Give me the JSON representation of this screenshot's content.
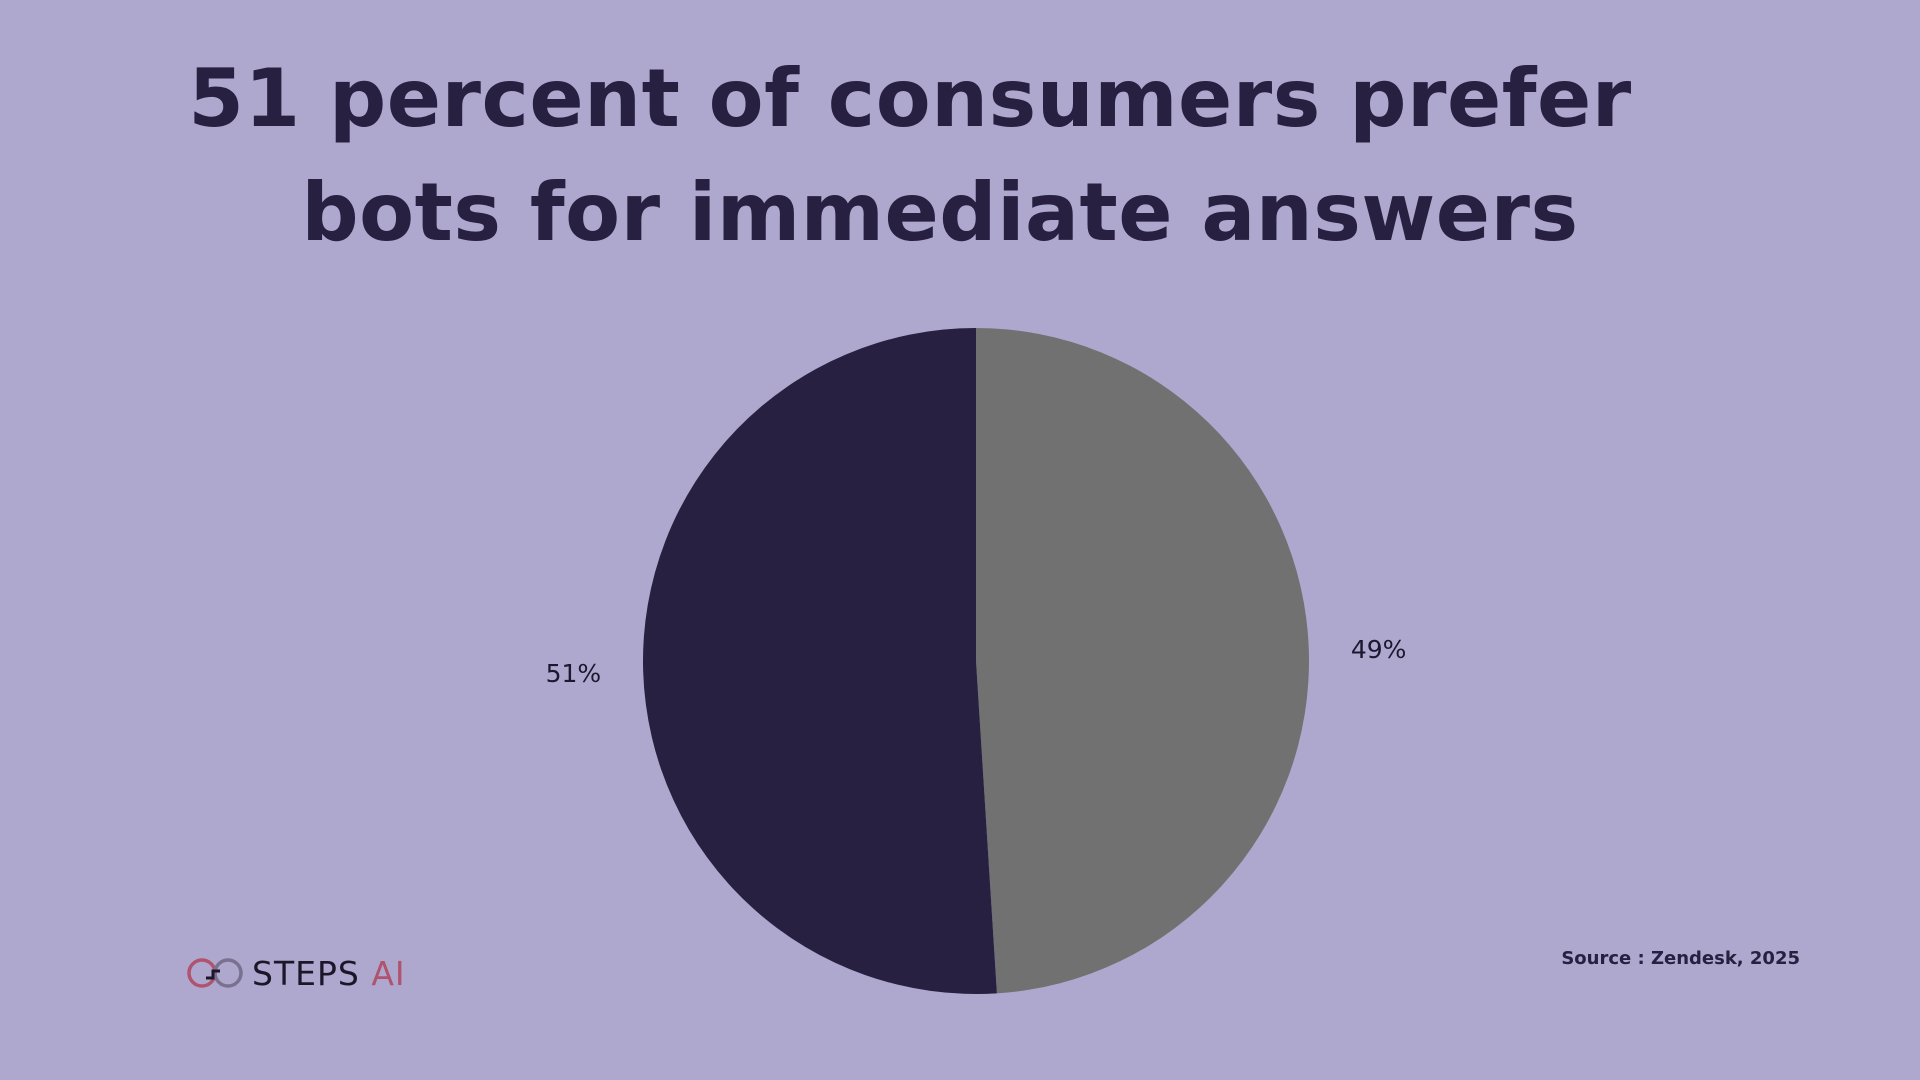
{
  "title": {
    "line1": "51 percent of consumers prefer",
    "line2": "bots for immediate answers"
  },
  "chart_data": {
    "type": "pie",
    "title": "51 percent of consumers prefer bots for immediate answers",
    "slices": [
      {
        "value": 49,
        "label": "49%",
        "color": "#717171"
      },
      {
        "value": 51,
        "label": "51%",
        "color": "#272040"
      }
    ],
    "start": "12 o'clock",
    "direction": "clockwise",
    "legend": "none"
  },
  "source": "Source : Zendesk, 2025",
  "logo": {
    "text": "STEPS",
    "accent": "AI",
    "icon": "steps-ai-logo-icon",
    "accent_color": "#b0536e"
  },
  "colors": {
    "background": "#aea8ce",
    "text": "#272040"
  }
}
